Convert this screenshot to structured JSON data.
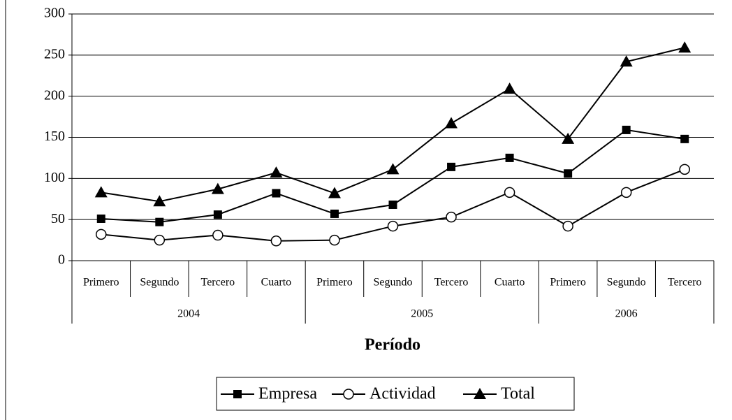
{
  "chart_data": {
    "type": "line",
    "x_label": "Período",
    "groups": [
      {
        "name": "2004",
        "categories": [
          "Primero",
          "Segundo",
          "Tercero",
          "Cuarto"
        ]
      },
      {
        "name": "2005",
        "categories": [
          "Primero",
          "Segundo",
          "Tercero",
          "Cuarto"
        ]
      },
      {
        "name": "2006",
        "categories": [
          "Primero",
          "Segundo",
          "Tercero"
        ]
      }
    ],
    "series": [
      {
        "name": "Empresa",
        "color": "#000000",
        "marker": "square",
        "values": [
          51,
          47,
          56,
          82,
          57,
          68,
          114,
          125,
          106,
          159,
          148
        ]
      },
      {
        "name": "Actividad",
        "color": "#000000",
        "marker": "circle",
        "values": [
          32,
          25,
          31,
          24,
          25,
          42,
          53,
          83,
          42,
          83,
          111
        ]
      },
      {
        "name": "Total",
        "color": "#000000",
        "marker": "triangle",
        "values": [
          83,
          72,
          87,
          107,
          82,
          111,
          167,
          209,
          148,
          242,
          259
        ]
      }
    ],
    "ylim": [
      0,
      300
    ],
    "yticks": [
      0,
      50,
      100,
      150,
      200,
      250,
      300
    ],
    "grid": true,
    "legend": "bottom"
  }
}
